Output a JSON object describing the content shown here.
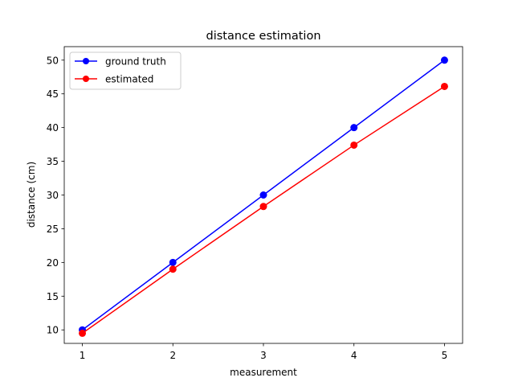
{
  "chart_data": {
    "type": "line",
    "title": "distance estimation",
    "xlabel": "measurement",
    "ylabel": "distance (cm)",
    "x": [
      1,
      2,
      3,
      4,
      5
    ],
    "xticks": [
      1,
      2,
      3,
      4,
      5
    ],
    "yticks": [
      10,
      15,
      20,
      25,
      30,
      35,
      40,
      45,
      50
    ],
    "xlim": [
      0.8,
      5.2
    ],
    "ylim": [
      8.0,
      52.0
    ],
    "grid": false,
    "legend_position": "top-left",
    "series": [
      {
        "name": "ground truth",
        "color": "#0000ff",
        "marker": "circle",
        "values": [
          10,
          20,
          30,
          40,
          50
        ]
      },
      {
        "name": "estimated",
        "color": "#ff0000",
        "marker": "circle",
        "values": [
          9.5,
          19.0,
          28.3,
          37.4,
          46.1
        ]
      }
    ]
  }
}
